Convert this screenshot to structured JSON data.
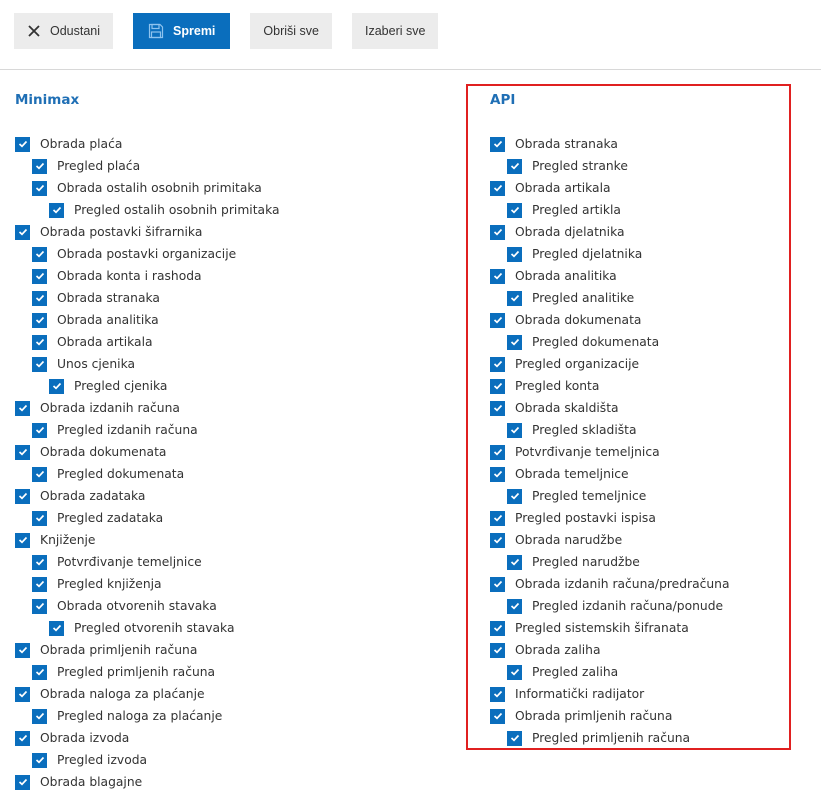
{
  "toolbar": {
    "cancel": "Odustani",
    "save": "Spremi",
    "clear_all": "Obriši sve",
    "select_all": "Izaberi sve"
  },
  "minimax": {
    "title": "Minimax",
    "items": [
      {
        "label": "Obrada plaća",
        "level": 0
      },
      {
        "label": "Pregled plaća",
        "level": 1
      },
      {
        "label": "Obrada ostalih osobnih primitaka",
        "level": 1
      },
      {
        "label": "Pregled ostalih osobnih primitaka",
        "level": 2
      },
      {
        "label": "Obrada postavki šifrarnika",
        "level": 0
      },
      {
        "label": "Obrada postavki organizacije",
        "level": 1
      },
      {
        "label": "Obrada konta i rashoda",
        "level": 1
      },
      {
        "label": "Obrada stranaka",
        "level": 1
      },
      {
        "label": "Obrada analitika",
        "level": 1
      },
      {
        "label": "Obrada artikala",
        "level": 1
      },
      {
        "label": "Unos cjenika",
        "level": 1
      },
      {
        "label": "Pregled cjenika",
        "level": 2
      },
      {
        "label": "Obrada izdanih računa",
        "level": 0
      },
      {
        "label": "Pregled izdanih računa",
        "level": 1
      },
      {
        "label": "Obrada dokumenata",
        "level": 0
      },
      {
        "label": "Pregled dokumenata",
        "level": 1
      },
      {
        "label": "Obrada zadataka",
        "level": 0
      },
      {
        "label": "Pregled zadataka",
        "level": 1
      },
      {
        "label": "Knjiženje",
        "level": 0
      },
      {
        "label": "Potvrđivanje temeljnice",
        "level": 1
      },
      {
        "label": "Pregled knjiženja",
        "level": 1
      },
      {
        "label": "Obrada otvorenih stavaka",
        "level": 1
      },
      {
        "label": "Pregled otvorenih stavaka",
        "level": 2
      },
      {
        "label": "Obrada primljenih računa",
        "level": 0
      },
      {
        "label": "Pregled primljenih računa",
        "level": 1
      },
      {
        "label": "Obrada naloga za plaćanje",
        "level": 0
      },
      {
        "label": "Pregled naloga za plaćanje",
        "level": 1
      },
      {
        "label": "Obrada izvoda",
        "level": 0
      },
      {
        "label": "Pregled izvoda",
        "level": 1
      },
      {
        "label": "Obrada blagajne",
        "level": 0
      }
    ]
  },
  "api": {
    "title": "API",
    "items": [
      {
        "label": "Obrada stranaka",
        "level": 0
      },
      {
        "label": "Pregled stranke",
        "level": 1
      },
      {
        "label": "Obrada artikala",
        "level": 0
      },
      {
        "label": "Pregled artikla",
        "level": 1
      },
      {
        "label": "Obrada djelatnika",
        "level": 0
      },
      {
        "label": "Pregled djelatnika",
        "level": 1
      },
      {
        "label": "Obrada analitika",
        "level": 0
      },
      {
        "label": "Pregled analitike",
        "level": 1
      },
      {
        "label": "Obrada dokumenata",
        "level": 0
      },
      {
        "label": "Pregled dokumenata",
        "level": 1
      },
      {
        "label": "Pregled organizacije",
        "level": 0
      },
      {
        "label": "Pregled konta",
        "level": 0
      },
      {
        "label": "Obrada skaldišta",
        "level": 0
      },
      {
        "label": "Pregled skladišta",
        "level": 1
      },
      {
        "label": "Potvrđivanje temeljnica",
        "level": 0
      },
      {
        "label": "Obrada temeljnice",
        "level": 0
      },
      {
        "label": "Pregled temeljnice",
        "level": 1
      },
      {
        "label": "Pregled postavki ispisa",
        "level": 0
      },
      {
        "label": "Obrada narudžbe",
        "level": 0
      },
      {
        "label": "Pregled narudžbe",
        "level": 1
      },
      {
        "label": "Obrada izdanih računa/predračuna",
        "level": 0
      },
      {
        "label": "Pregled izdanih računa/ponude",
        "level": 1
      },
      {
        "label": "Pregled sistemskih šifranata",
        "level": 0
      },
      {
        "label": "Obrada zaliha",
        "level": 0
      },
      {
        "label": "Pregled zaliha",
        "level": 1
      },
      {
        "label": "Informatički radijator",
        "level": 0
      },
      {
        "label": "Obrada primljenih računa",
        "level": 0
      },
      {
        "label": "Pregled primljenih računa",
        "level": 1
      }
    ]
  },
  "colors": {
    "accent": "#0a6ebd",
    "heading": "#1f6fb5",
    "highlight": "#e02020"
  }
}
